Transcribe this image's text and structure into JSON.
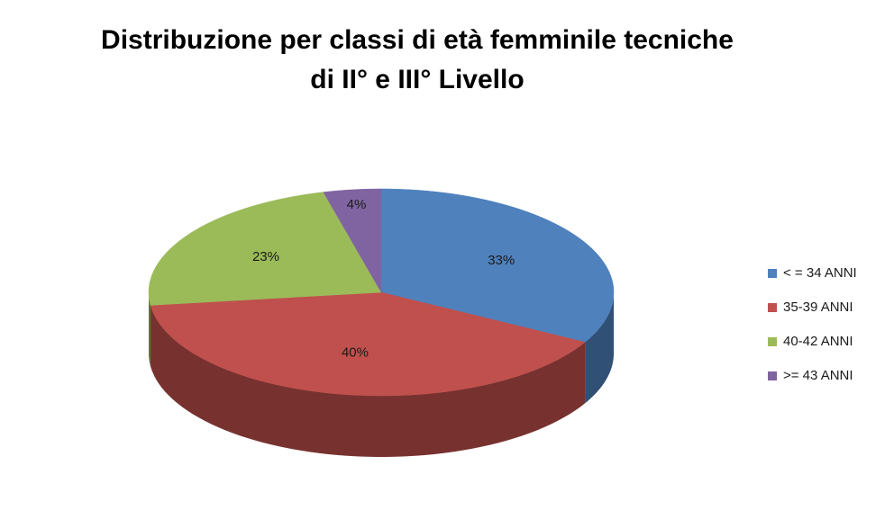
{
  "chart_data": {
    "type": "pie3d",
    "title": [
      "Distribuzione per classi di età femminile tecniche",
      "di II° e III° Livello"
    ],
    "categories": [
      "< = 34 ANNI",
      "35-39 ANNI",
      "40-42 ANNI",
      ">= 43 ANNI"
    ],
    "values": [
      33,
      40,
      23,
      4
    ],
    "value_labels": [
      "33%",
      "40%",
      "23%",
      "4%"
    ],
    "colors": [
      "#4F81BD",
      "#C0504D",
      "#9BBB59",
      "#8064A2"
    ],
    "legend": "right"
  }
}
